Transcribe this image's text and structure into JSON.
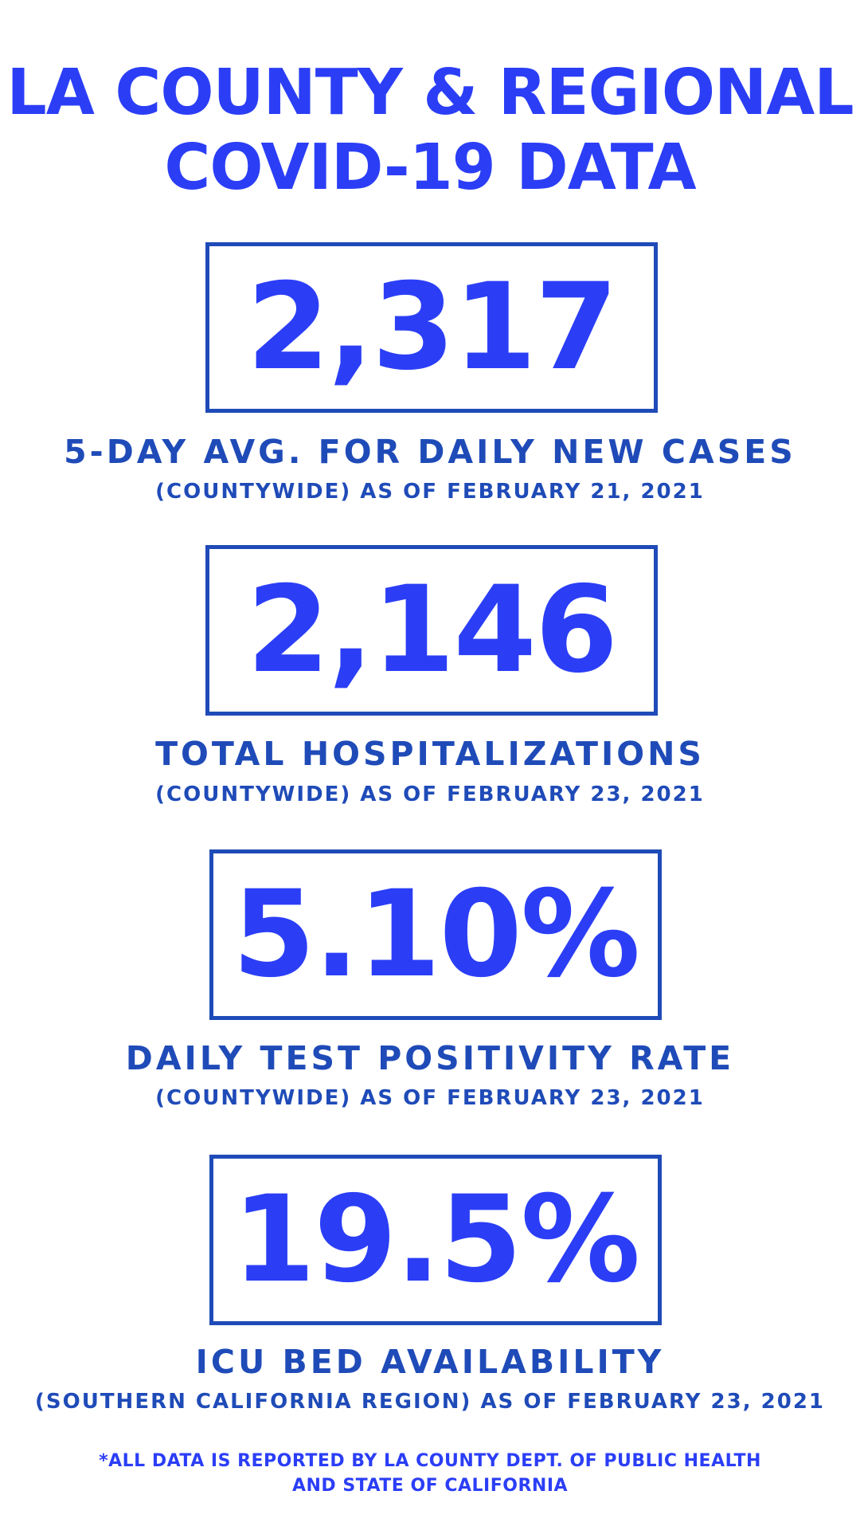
{
  "title": {
    "line1": "LA COUNTY & REGIONAL",
    "line2": "COVID-19 DATA"
  },
  "stats": [
    {
      "value": "2,317",
      "label": "5-DAY AVG. FOR DAILY NEW CASES",
      "sub": "(COUNTYWIDE) AS OF FEBRUARY 21, 2021"
    },
    {
      "value": "2,146",
      "label": "TOTAL HOSPITALIZATIONS",
      "sub": "(COUNTYWIDE) AS OF FEBRUARY 23, 2021"
    },
    {
      "value": "5.10%",
      "label": "DAILY TEST POSITIVITY RATE",
      "sub": "(COUNTYWIDE) AS OF FEBRUARY 23, 2021"
    },
    {
      "value": "19.5%",
      "label": "ICU BED AVAILABILITY",
      "sub": "(SOUTHERN CALIFORNIA REGION) AS OF FEBRUARY 23, 2021"
    }
  ],
  "footnote": {
    "line1": "*ALL DATA IS REPORTED BY LA COUNTY DEPT. OF PUBLIC HEALTH",
    "line2": "AND STATE OF CALIFORNIA"
  },
  "colors": {
    "accent": "#2b3ef6",
    "secondary": "#1f4bb8",
    "background": "#ffffff"
  }
}
